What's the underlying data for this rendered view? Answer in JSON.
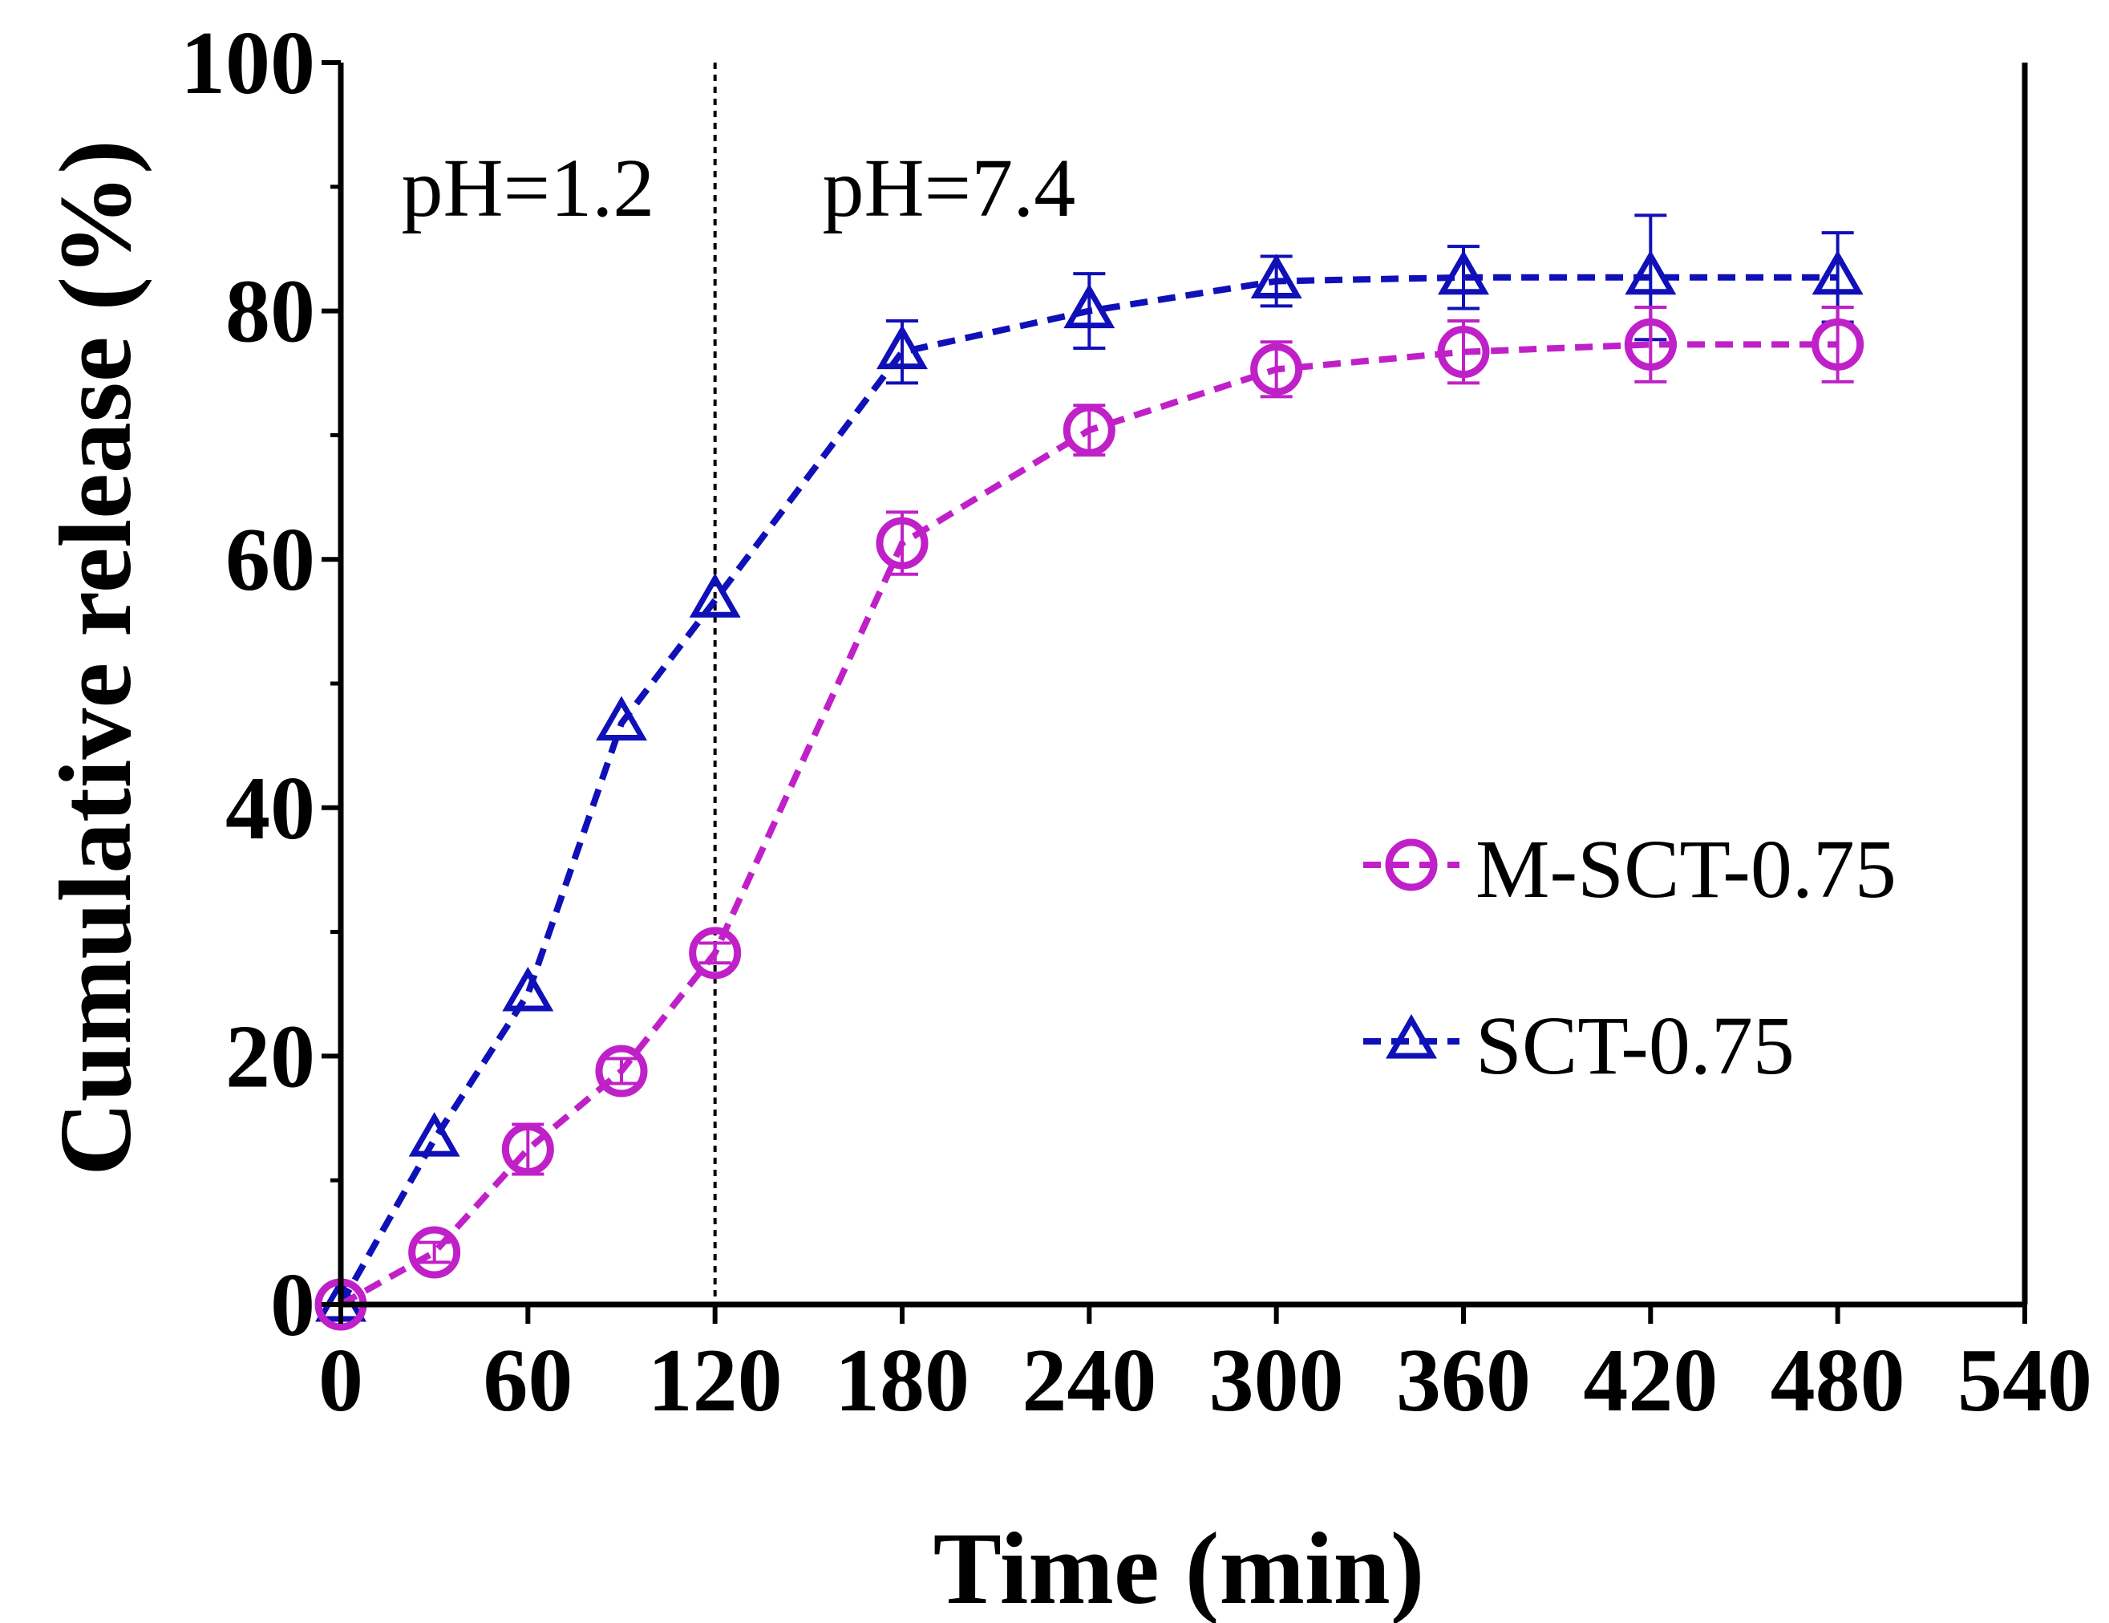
{
  "chart_data": {
    "type": "line",
    "title": "",
    "xlabel": "Time (min)",
    "ylabel": "Cumulative release (%)",
    "xlim": [
      0,
      540
    ],
    "ylim": [
      0,
      100
    ],
    "xticks": [
      "0",
      "60",
      "120",
      "180",
      "240",
      "300",
      "360",
      "420",
      "480",
      "540"
    ],
    "yticks": [
      "0",
      "20",
      "40",
      "60",
      "80",
      "100"
    ],
    "grid": false,
    "legend_position": "right",
    "divider_x": 120,
    "annotations": [
      {
        "text": "pH=1.2",
        "x": 60,
        "y": 90
      },
      {
        "text": "pH=7.4",
        "x": 195,
        "y": 90
      }
    ],
    "series": [
      {
        "name": "M-SCT-0.75",
        "color": "#c020c8",
        "marker": "circle",
        "x": [
          0,
          30,
          60,
          90,
          120,
          180,
          240,
          300,
          360,
          420,
          480
        ],
        "y": [
          0,
          4.2,
          12.5,
          18.8,
          28.3,
          61.3,
          70.4,
          75.3,
          76.7,
          77.3,
          77.3
        ],
        "err": [
          0,
          0.8,
          2.0,
          1.0,
          0.8,
          2.5,
          2.0,
          2.2,
          2.5,
          3.0,
          3.0
        ]
      },
      {
        "name": "SCT-0.75",
        "color": "#1010b8",
        "marker": "triangle",
        "x": [
          0,
          30,
          60,
          90,
          120,
          180,
          240,
          300,
          360,
          420,
          480
        ],
        "y": [
          0,
          13.3,
          25.0,
          46.8,
          56.7,
          76.7,
          80.0,
          82.4,
          82.7,
          82.7,
          82.7
        ],
        "err": [
          0,
          0,
          0,
          0,
          0,
          2.5,
          3.0,
          2.0,
          2.5,
          5.0,
          3.6
        ]
      }
    ]
  }
}
